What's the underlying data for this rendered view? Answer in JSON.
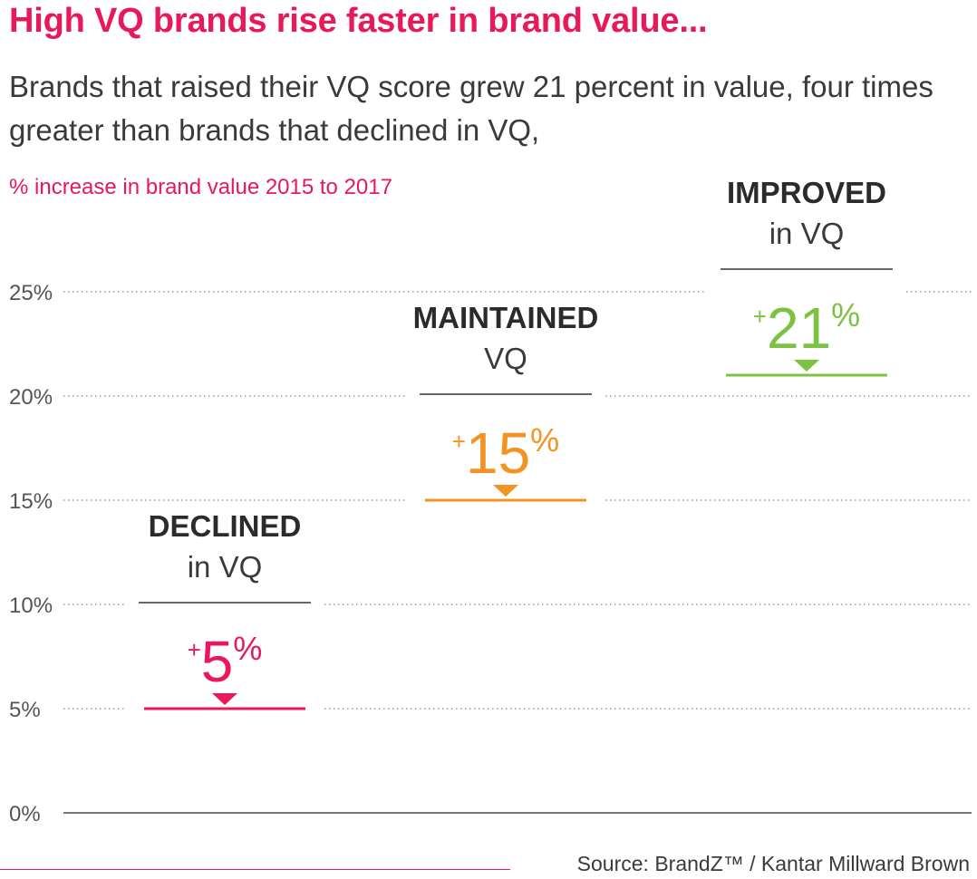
{
  "title": "High VQ brands rise faster in brand value...",
  "subtitle": "Brands that raised their VQ score grew 21 percent in value, four times greater than brands that declined in VQ,",
  "source": "Source: BrandZ™ / Kantar Millward Brown",
  "chart_data": {
    "type": "bar",
    "ylabel": "% increase in brand value 2015 to 2017",
    "ylim": [
      0,
      25
    ],
    "yticks": [
      0,
      5,
      10,
      15,
      20,
      25
    ],
    "ytick_labels": [
      "0%",
      "5%",
      "10%",
      "15%",
      "20%",
      "25%"
    ],
    "grid": true,
    "categories": [
      {
        "heading": "DECLINED",
        "subheading": "in VQ",
        "value": 5,
        "label_prefix": "+",
        "label_value": "5",
        "label_suffix": "%",
        "color": "#e8195a"
      },
      {
        "heading": "MAINTAINED",
        "subheading": "VQ",
        "value": 15,
        "label_prefix": "+",
        "label_value": "15",
        "label_suffix": "%",
        "color": "#f39322"
      },
      {
        "heading": "IMPROVED",
        "subheading": "in VQ",
        "value": 21,
        "label_prefix": "+",
        "label_value": "21",
        "label_suffix": "%",
        "color": "#7dc242"
      }
    ]
  }
}
